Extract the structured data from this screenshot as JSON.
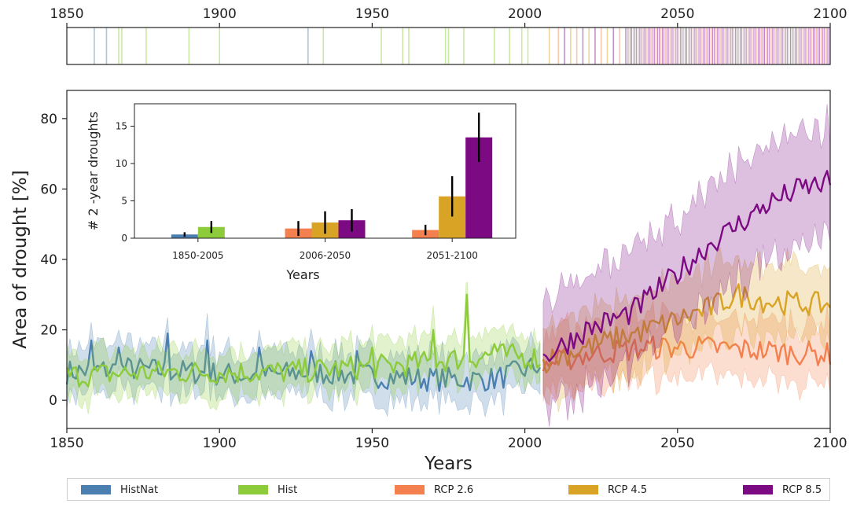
{
  "colors": {
    "HistNat": "#4a7fb0",
    "Hist": "#8ccb3a",
    "RCP 2.6": "#f4804f",
    "RCP 4.5": "#d9a325",
    "RCP 8.5": "#7c0a82"
  },
  "legend": [
    {
      "name": "HistNat",
      "label": "HistNat"
    },
    {
      "name": "Hist",
      "label": "Hist"
    },
    {
      "name": "RCP 2.6",
      "label": "RCP 2.6"
    },
    {
      "name": "RCP 4.5",
      "label": "RCP 4.5"
    },
    {
      "name": "RCP 8.5",
      "label": "RCP 8.5"
    }
  ],
  "chart_data": [
    {
      "id": "main",
      "type": "line",
      "title": "",
      "xlabel": "Years",
      "ylabel": "Area of drought [%]",
      "xlim": [
        1850,
        2100
      ],
      "ylim": [
        -8,
        88
      ],
      "xticks": [
        1850,
        1900,
        1950,
        2000,
        2050,
        2100
      ],
      "yticks": [
        0,
        20,
        40,
        60,
        80
      ],
      "series": [
        {
          "name": "HistNat",
          "range": [
            1850,
            2005
          ],
          "anchors": [
            [
              1850,
              8
            ],
            [
              1870,
              9
            ],
            [
              1890,
              8
            ],
            [
              1910,
              7
            ],
            [
              1930,
              8
            ],
            [
              1950,
              7
            ],
            [
              1970,
              6
            ],
            [
              1990,
              6
            ],
            [
              2005,
              10
            ]
          ],
          "band_half_width": 6,
          "peaks": [
            [
              1858,
              17
            ],
            [
              1867,
              15
            ],
            [
              1883,
              19
            ],
            [
              1896,
              17
            ],
            [
              1913,
              15
            ],
            [
              1930,
              14
            ],
            [
              1945,
              14
            ]
          ]
        },
        {
          "name": "Hist",
          "range": [
            1850,
            2005
          ],
          "anchors": [
            [
              1850,
              7
            ],
            [
              1880,
              8
            ],
            [
              1900,
              8
            ],
            [
              1920,
              8
            ],
            [
              1940,
              9
            ],
            [
              1960,
              10
            ],
            [
              1970,
              11
            ],
            [
              1990,
              13
            ],
            [
              2005,
              12
            ]
          ],
          "band_half_width": 6,
          "peaks": [
            [
              1950,
              15
            ],
            [
              1970,
              20
            ],
            [
              1981,
              30
            ],
            [
              1990,
              16
            ]
          ]
        },
        {
          "name": "RCP 2.6",
          "range": [
            2006,
            2100
          ],
          "anchors": [
            [
              2006,
              10
            ],
            [
              2020,
              13
            ],
            [
              2040,
              15
            ],
            [
              2060,
              15
            ],
            [
              2080,
              14
            ],
            [
              2100,
              13
            ]
          ],
          "band_half_width": 8
        },
        {
          "name": "RCP 4.5",
          "range": [
            2006,
            2100
          ],
          "anchors": [
            [
              2006,
              11
            ],
            [
              2020,
              15
            ],
            [
              2040,
              20
            ],
            [
              2060,
              26
            ],
            [
              2070,
              30
            ],
            [
              2080,
              28
            ],
            [
              2100,
              27
            ]
          ],
          "band_half_width": 10
        },
        {
          "name": "RCP 8.5",
          "range": [
            2006,
            2100
          ],
          "anchors": [
            [
              2006,
              12
            ],
            [
              2020,
              20
            ],
            [
              2035,
              25
            ],
            [
              2050,
              36
            ],
            [
              2060,
              44
            ],
            [
              2070,
              50
            ],
            [
              2080,
              56
            ],
            [
              2090,
              60
            ],
            [
              2100,
              62
            ]
          ],
          "band_half_width": 15
        }
      ]
    },
    {
      "id": "strip",
      "type": "heatmap",
      "title": "",
      "xlim": [
        1850,
        2100
      ],
      "xticks": [
        1850,
        1900,
        1950,
        2000,
        2050,
        2100
      ],
      "events": [
        {
          "year": 1859,
          "series": "HistNat"
        },
        {
          "year": 1863,
          "series": "HistNat"
        },
        {
          "year": 1867,
          "series": "Hist"
        },
        {
          "year": 1868,
          "series": "Hist"
        },
        {
          "year": 1876,
          "series": "Hist"
        },
        {
          "year": 1890,
          "series": "Hist"
        },
        {
          "year": 1900,
          "series": "Hist"
        },
        {
          "year": 1929,
          "series": "HistNat"
        },
        {
          "year": 1934,
          "series": "Hist"
        },
        {
          "year": 1953,
          "series": "Hist"
        },
        {
          "year": 1960,
          "series": "Hist"
        },
        {
          "year": 1962,
          "series": "Hist"
        },
        {
          "year": 1974,
          "series": "Hist"
        },
        {
          "year": 1975,
          "series": "Hist"
        },
        {
          "year": 1980,
          "series": "Hist"
        },
        {
          "year": 1990,
          "series": "Hist"
        },
        {
          "year": 1995,
          "series": "Hist"
        },
        {
          "year": 1999,
          "series": "Hist"
        },
        {
          "year": 2001,
          "series": "Hist"
        },
        {
          "year": 2008,
          "series": "RCP 4.5"
        },
        {
          "year": 2011,
          "series": "RCP 2.6"
        },
        {
          "year": 2013,
          "series": "RCP 8.5"
        },
        {
          "year": 2015,
          "series": "RCP 4.5"
        },
        {
          "year": 2017,
          "series": "RCP 2.6"
        },
        {
          "year": 2019,
          "series": "RCP 8.5"
        },
        {
          "year": 2021,
          "series": "RCP 4.5"
        },
        {
          "year": 2023,
          "series": "RCP 8.5"
        },
        {
          "year": 2025,
          "series": "RCP 2.6"
        },
        {
          "year": 2027,
          "series": "RCP 4.5"
        },
        {
          "year": 2029,
          "series": "RCP 8.5"
        },
        {
          "year": 2031,
          "series": "RCP 2.6"
        }
      ],
      "dense_range": {
        "start": 2033,
        "end": 2100,
        "series": "RCP 8.5"
      }
    },
    {
      "id": "inset",
      "type": "bar",
      "title": "",
      "xlabel": "Years",
      "ylabel": "# 2 -year droughts",
      "ylim": [
        0,
        18
      ],
      "yticks": [
        0,
        5,
        10,
        15
      ],
      "categories": [
        "1850-2005",
        "2006-2050",
        "2051-2100"
      ],
      "series": [
        {
          "name": "HistNat",
          "values": [
            0.5,
            null,
            null
          ],
          "err": [
            0.3,
            null,
            null
          ]
        },
        {
          "name": "Hist",
          "values": [
            1.5,
            null,
            null
          ],
          "err": [
            0.8,
            null,
            null
          ]
        },
        {
          "name": "RCP 2.6",
          "values": [
            null,
            1.3,
            1.1
          ],
          "err": [
            null,
            1.0,
            0.7
          ]
        },
        {
          "name": "RCP 4.5",
          "values": [
            null,
            2.1,
            5.6
          ],
          "err": [
            null,
            1.5,
            2.7
          ]
        },
        {
          "name": "RCP 8.5",
          "values": [
            null,
            2.4,
            13.5
          ],
          "err": [
            null,
            1.5,
            3.3
          ]
        }
      ]
    }
  ]
}
